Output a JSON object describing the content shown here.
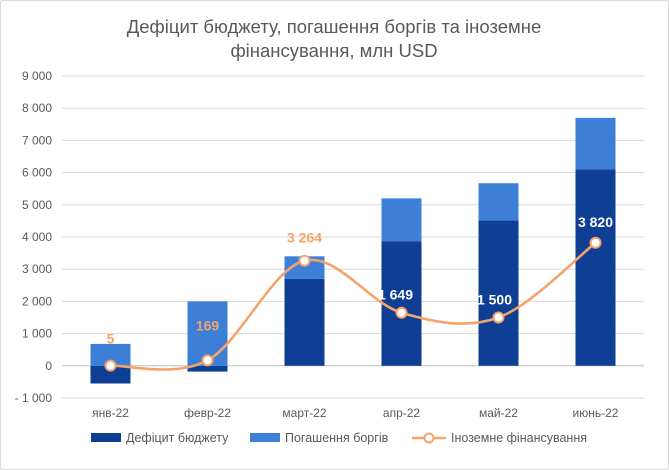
{
  "chart_data": {
    "type": "bar",
    "title_lines": [
      "Дефіцит бюджету, погашення боргів та іноземне",
      "фінансування, млн USD"
    ],
    "categories": [
      "янв-22",
      "февр-22",
      "март-22",
      "апр-22",
      "май-22",
      "июнь-22"
    ],
    "ylim": [
      -1000,
      9000
    ],
    "ytick_values": [
      -1000,
      0,
      1000,
      2000,
      3000,
      4000,
      5000,
      6000,
      7000,
      8000,
      9000
    ],
    "ytick_labels": [
      "- 1 000",
      "0",
      "1 000",
      "2 000",
      "3 000",
      "4 000",
      "5 000",
      "6 000",
      "7 000",
      "8 000",
      "9 000"
    ],
    "grid": true,
    "legend_position": "bottom",
    "series": [
      {
        "name": "Дефіцит бюджету",
        "kind": "stacked-bar",
        "color": "#0e3f95",
        "values": [
          -550,
          -180,
          2700,
          3870,
          4520,
          6100
        ]
      },
      {
        "name": "Погашення боргів",
        "kind": "stacked-bar",
        "color": "#3d7fd6",
        "values": [
          680,
          2000,
          700,
          1330,
          1150,
          1600
        ]
      },
      {
        "name": "Іноземне фінансування",
        "kind": "smooth-line",
        "color": "#f4a46a",
        "label_color": "#f4a46a",
        "values": [
          5,
          169,
          3264,
          1649,
          1500,
          3820
        ],
        "labels": [
          "5",
          "169",
          "3 264",
          "1 649",
          "1 500",
          "3 820"
        ]
      }
    ]
  }
}
